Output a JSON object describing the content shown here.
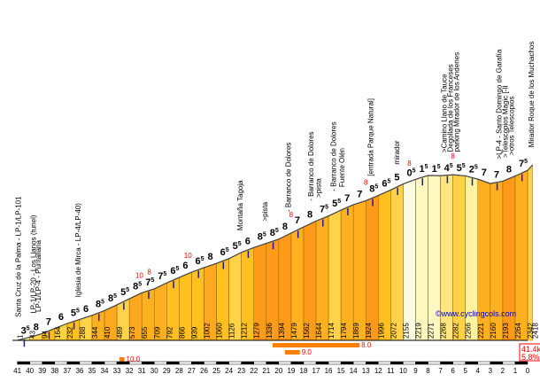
{
  "chart_data": {
    "type": "area",
    "watermark": "©www.cyclingcols.com",
    "summary": {
      "distance": "41.4km",
      "avg_grade": "5.8%"
    },
    "km_ticks": [
      "41",
      "40",
      "39",
      "38",
      "37",
      "36",
      "35",
      "34",
      "33",
      "32",
      "31",
      "30",
      "29",
      "28",
      "27",
      "26",
      "25",
      "24",
      "23",
      "22",
      "21",
      "20",
      "19",
      "18",
      "17",
      "16",
      "15",
      "14",
      "13",
      "12",
      "11",
      "10",
      "9",
      "8",
      "7",
      "6",
      "5",
      "4",
      "3",
      "2",
      "1",
      "0"
    ],
    "segments": [
      {
        "label": "3",
        "sup": "5",
        "color": "#fff5a0"
      },
      {
        "label": "8",
        "sup": "",
        "color": "#ffd24a"
      },
      {
        "label": "7",
        "sup": "",
        "color": "#ffc020"
      },
      {
        "label": "6",
        "sup": "",
        "color": "#ffd440"
      },
      {
        "label": "5",
        "sup": "5",
        "color": "#ffc020"
      },
      {
        "label": "6",
        "sup": "",
        "color": "#ffd24a"
      },
      {
        "label": "8",
        "sup": "5",
        "color": "#ffb020"
      },
      {
        "label": "8",
        "sup": "5",
        "color": "#ffa820"
      },
      {
        "label": "5",
        "sup": "5",
        "color": "#ffd24a"
      },
      {
        "label": "8",
        "sup": "5",
        "color": "#ffa820"
      },
      {
        "label": "7",
        "sup": "5",
        "color": "#ffb020"
      },
      {
        "label": "7",
        "sup": "5",
        "color": "#ffb020"
      },
      {
        "label": "6",
        "sup": "5",
        "color": "#ffc020"
      },
      {
        "label": "6",
        "sup": "",
        "color": "#ffc020"
      },
      {
        "label": "6",
        "sup": "5",
        "color": "#ffc020"
      },
      {
        "label": "8",
        "sup": "",
        "color": "#ffa820"
      },
      {
        "label": "6",
        "sup": "5",
        "color": "#ffc020"
      },
      {
        "label": "5",
        "sup": "5",
        "color": "#ffd24a"
      },
      {
        "label": "6",
        "sup": "",
        "color": "#ffc020"
      },
      {
        "label": "8",
        "sup": "5",
        "color": "#ff9a1a"
      },
      {
        "label": "8",
        "sup": "5",
        "color": "#ff9a1a"
      },
      {
        "label": "8",
        "sup": "",
        "color": "#ff9a1a"
      },
      {
        "label": "7",
        "sup": "",
        "color": "#ffb020"
      },
      {
        "label": "8",
        "sup": "",
        "color": "#ff9a1a"
      },
      {
        "label": "7",
        "sup": "5",
        "color": "#ffb020"
      },
      {
        "label": "5",
        "sup": "5",
        "color": "#ffd24a"
      },
      {
        "label": "7",
        "sup": "",
        "color": "#ffb020"
      },
      {
        "label": "7",
        "sup": "",
        "color": "#ffb020"
      },
      {
        "label": "8",
        "sup": "5",
        "color": "#ff9a1a"
      },
      {
        "label": "6",
        "sup": "5",
        "color": "#ffc020"
      },
      {
        "label": "5",
        "sup": "",
        "color": "#ffd24a"
      },
      {
        "label": "0",
        "sup": "5",
        "color": "#fffbe0"
      },
      {
        "label": "1",
        "sup": "5",
        "color": "#fff8c0"
      },
      {
        "label": "1",
        "sup": "5",
        "color": "#fff8c0"
      },
      {
        "label": "4",
        "sup": "5",
        "color": "#ffe680"
      },
      {
        "label": "5",
        "sup": "5",
        "color": "#ffd24a"
      },
      {
        "label": "2",
        "sup": "5",
        "color": "#fff2a0"
      },
      {
        "label": "7",
        "sup": "",
        "color": "#ffb020"
      },
      {
        "label": "7",
        "sup": "",
        "color": "#ffb020"
      },
      {
        "label": "8",
        "sup": "",
        "color": "#ff9a1a"
      },
      {
        "label": "7",
        "sup": "5",
        "color": "#ffb020"
      }
    ],
    "altitudes": [
      {
        "km": 41,
        "alt": "1"
      },
      {
        "km": 40,
        "alt": "43"
      },
      {
        "km": 39,
        "alt": "94"
      },
      {
        "km": 38,
        "alt": "164"
      },
      {
        "km": 37,
        "alt": "232"
      },
      {
        "km": 36,
        "alt": "288"
      },
      {
        "km": 35,
        "alt": "344"
      },
      {
        "km": 34,
        "alt": "410"
      },
      {
        "km": 33,
        "alt": "489"
      },
      {
        "km": 32,
        "alt": "573"
      },
      {
        "km": 31,
        "alt": "655"
      },
      {
        "km": 30,
        "alt": "709"
      },
      {
        "km": 29,
        "alt": "792"
      },
      {
        "km": 28,
        "alt": "866"
      },
      {
        "km": 27,
        "alt": "939"
      },
      {
        "km": 26,
        "alt": "1002"
      },
      {
        "km": 25,
        "alt": "1060"
      },
      {
        "km": 24,
        "alt": "1126"
      },
      {
        "km": 23,
        "alt": "1212"
      },
      {
        "km": 22,
        "alt": "1279"
      },
      {
        "km": 21,
        "alt": "1336"
      },
      {
        "km": 20,
        "alt": "1394"
      },
      {
        "km": 19,
        "alt": "1479"
      },
      {
        "km": 18,
        "alt": "1562"
      },
      {
        "km": 17,
        "alt": "1644"
      },
      {
        "km": 16,
        "alt": "1714"
      },
      {
        "km": 15,
        "alt": "1794"
      },
      {
        "km": 14,
        "alt": "1869"
      },
      {
        "km": 13,
        "alt": "1924"
      },
      {
        "km": 12,
        "alt": "1996"
      },
      {
        "km": 11,
        "alt": "2072"
      },
      {
        "km": 10,
        "alt": "2155"
      },
      {
        "km": 9,
        "alt": "2219"
      },
      {
        "km": 8,
        "alt": "2271"
      },
      {
        "km": 7,
        "alt": "2268"
      },
      {
        "km": 6,
        "alt": "2282"
      },
      {
        "km": 5,
        "alt": "2266"
      },
      {
        "km": 4,
        "alt": "2221"
      },
      {
        "km": 3,
        "alt": "2160"
      },
      {
        "km": 2,
        "alt": "2193"
      },
      {
        "km": 1,
        "alt": "2264"
      },
      {
        "km": 0,
        "alt": "2342"
      },
      {
        "km": -0.4,
        "alt": "2418"
      }
    ],
    "max_grade_labels": [
      {
        "km": 31.2,
        "text": "10"
      },
      {
        "km": 30.4,
        "text": "8"
      },
      {
        "km": 27.3,
        "text": "10"
      },
      {
        "km": 19.0,
        "text": "8"
      },
      {
        "km": 13.0,
        "text": "8"
      },
      {
        "km": 9.5,
        "text": "8"
      },
      {
        "km": 6.0,
        "text": "8"
      }
    ],
    "steep_bars": [
      {
        "text": "10.0",
        "km_from": 32.8,
        "km_to": 32.4,
        "row": 2
      },
      {
        "text": "8.0",
        "km_from": 20.5,
        "km_to": 13.5,
        "row": 0
      },
      {
        "text": "9.0",
        "km_from": 19.5,
        "km_to": 18.3,
        "row": 1
      }
    ],
    "landmarks": [
      {
        "km": 41.0,
        "text": "Santa Cruz de la Palma - LP-1/LP-101"
      },
      {
        "km": 39.8,
        "text": "LP-1/LP-20 - Los Llanos (tunel)"
      },
      {
        "km": 39.4,
        "text": "LP-1/LP-4 - Puntallana"
      },
      {
        "km": 36.2,
        "text": "Iglesia de Mirca - LP-4/LP-40)"
      },
      {
        "km": 23.2,
        "text": "Montaña Tagoja"
      },
      {
        "km": 21.2,
        "text": ">pista"
      },
      {
        "km": 19.3,
        "text": "- Barranco de Dolores"
      },
      {
        "km": 17.5,
        "text": "- Barranco de Dolores"
      },
      {
        "km": 16.9,
        "text": ">pista"
      },
      {
        "km": 15.7,
        "text": "- Barranco de Dolores"
      },
      {
        "km": 15.0,
        "text": "Fuente Olén"
      },
      {
        "km": 12.7,
        "text": "[entrada Parque Natural]"
      },
      {
        "km": 10.6,
        "text": "mirador"
      },
      {
        "km": 6.8,
        "text": ">Camino Llano de Tauce"
      },
      {
        "km": 6.3,
        "text": "Degollada de los Franceses"
      },
      {
        "km": 5.8,
        "text": "parking Mirador de los Andenes"
      },
      {
        "km": 2.4,
        "text": ">LP-4 - Santo Domingo de Garafía"
      },
      {
        "km": 1.9,
        "text": ">Telescopios Magic [-II"
      },
      {
        "km": 1.4,
        "text": ">otros Telescopios"
      },
      {
        "km": -0.2,
        "text": "Mirador Roque de los Muchachos"
      }
    ],
    "xlim": [
      41.4,
      0
    ],
    "ylim": [
      0,
      2418
    ]
  }
}
